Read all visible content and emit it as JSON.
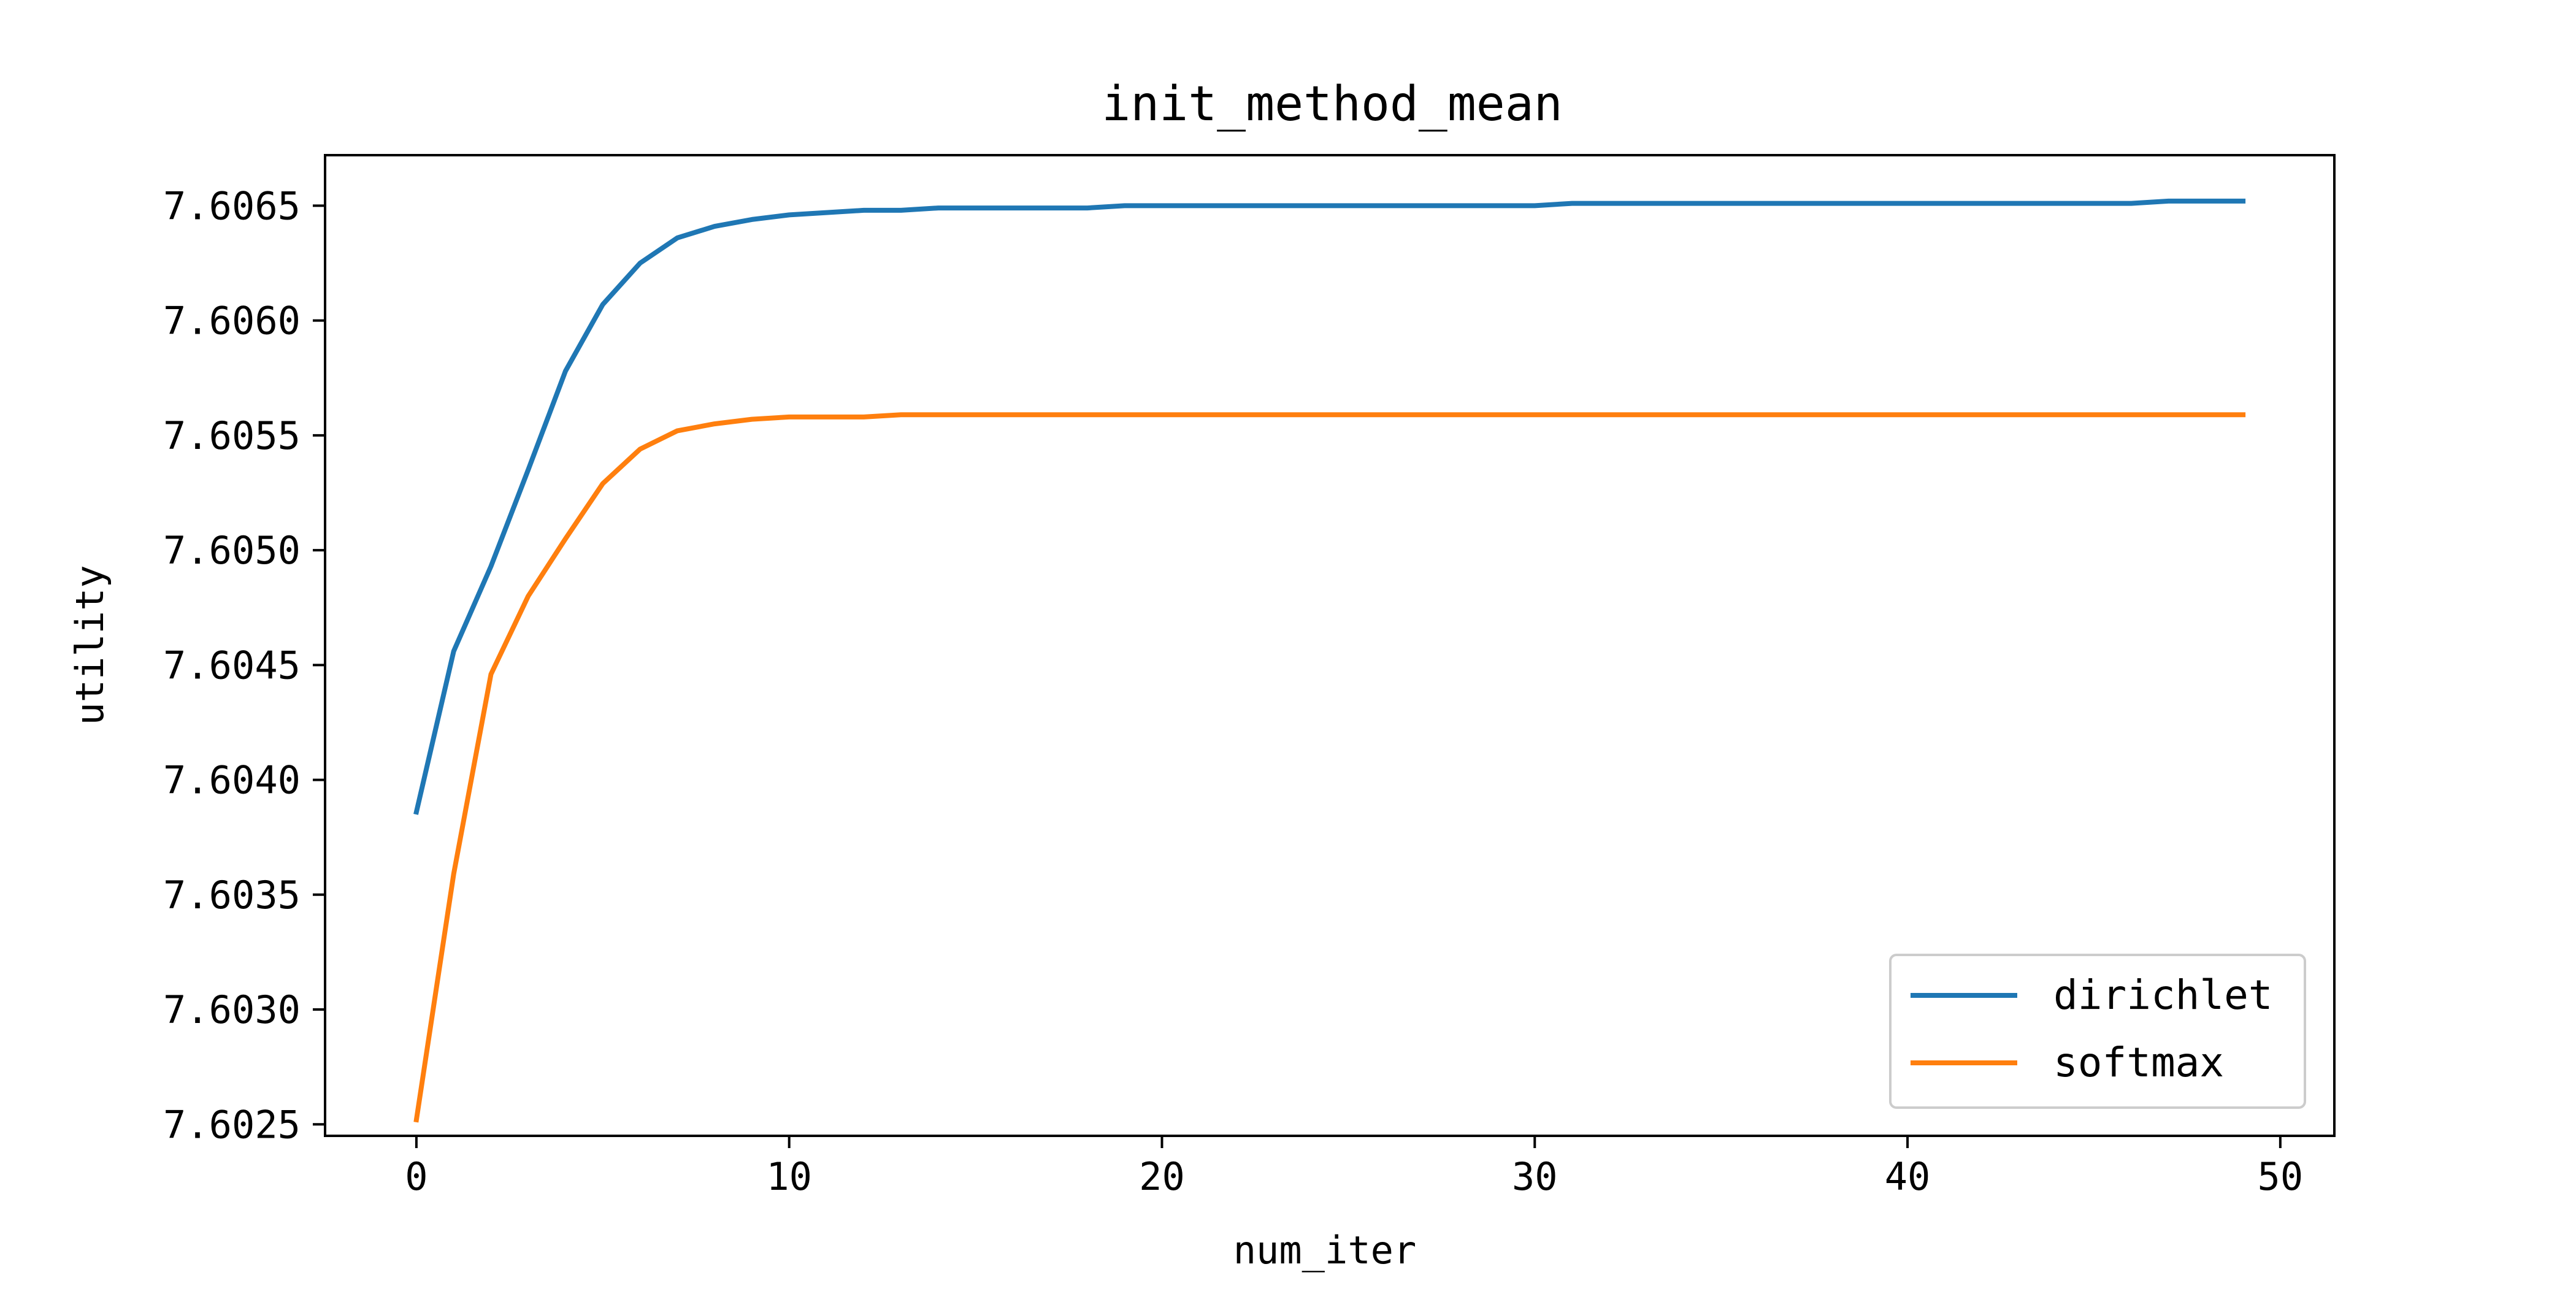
{
  "chart_data": {
    "type": "line",
    "title": "init_method_mean",
    "xlabel": "num_iter",
    "ylabel": "utility",
    "xlim": [
      -2.45,
      51.45
    ],
    "ylim": [
      7.60245,
      7.60672
    ],
    "x_ticks": [
      0,
      10,
      20,
      30,
      40,
      50
    ],
    "x_tick_labels": [
      "0",
      "10",
      "20",
      "30",
      "40",
      "50"
    ],
    "y_ticks": [
      7.6025,
      7.603,
      7.6035,
      7.604,
      7.6045,
      7.605,
      7.6055,
      7.606,
      7.6065
    ],
    "y_tick_labels": [
      "7.6025",
      "7.6030",
      "7.6035",
      "7.6040",
      "7.6045",
      "7.6050",
      "7.6055",
      "7.6060",
      "7.6065"
    ],
    "grid": false,
    "legend_position": "lower-right",
    "x": [
      0,
      1,
      2,
      3,
      4,
      5,
      6,
      7,
      8,
      9,
      10,
      11,
      12,
      13,
      14,
      15,
      16,
      17,
      18,
      19,
      20,
      21,
      22,
      23,
      24,
      25,
      26,
      27,
      28,
      29,
      30,
      31,
      32,
      33,
      34,
      35,
      36,
      37,
      38,
      39,
      40,
      41,
      42,
      43,
      44,
      45,
      46,
      47,
      48,
      49
    ],
    "series": [
      {
        "name": "dirichlet",
        "color": "#1f77b4",
        "values": [
          7.60386,
          7.60456,
          7.60493,
          7.60535,
          7.60578,
          7.60607,
          7.60625,
          7.60636,
          7.60641,
          7.60644,
          7.60646,
          7.60647,
          7.60648,
          7.60648,
          7.60649,
          7.60649,
          7.60649,
          7.60649,
          7.60649,
          7.6065,
          7.6065,
          7.6065,
          7.6065,
          7.6065,
          7.6065,
          7.6065,
          7.6065,
          7.6065,
          7.6065,
          7.6065,
          7.6065,
          7.60651,
          7.60651,
          7.60651,
          7.60651,
          7.60651,
          7.60651,
          7.60651,
          7.60651,
          7.60651,
          7.60651,
          7.60651,
          7.60651,
          7.60651,
          7.60651,
          7.60651,
          7.60651,
          7.60652,
          7.60652,
          7.60652
        ]
      },
      {
        "name": "softmax",
        "color": "#ff7f0e",
        "values": [
          7.60252,
          7.60359,
          7.60446,
          7.6048,
          7.60505,
          7.60529,
          7.60544,
          7.60552,
          7.60555,
          7.60557,
          7.60558,
          7.60558,
          7.60558,
          7.60559,
          7.60559,
          7.60559,
          7.60559,
          7.60559,
          7.60559,
          7.60559,
          7.60559,
          7.60559,
          7.60559,
          7.60559,
          7.60559,
          7.60559,
          7.60559,
          7.60559,
          7.60559,
          7.60559,
          7.60559,
          7.60559,
          7.60559,
          7.60559,
          7.60559,
          7.60559,
          7.60559,
          7.60559,
          7.60559,
          7.60559,
          7.60559,
          7.60559,
          7.60559,
          7.60559,
          7.60559,
          7.60559,
          7.60559,
          7.60559,
          7.60559,
          7.60559
        ]
      }
    ]
  }
}
